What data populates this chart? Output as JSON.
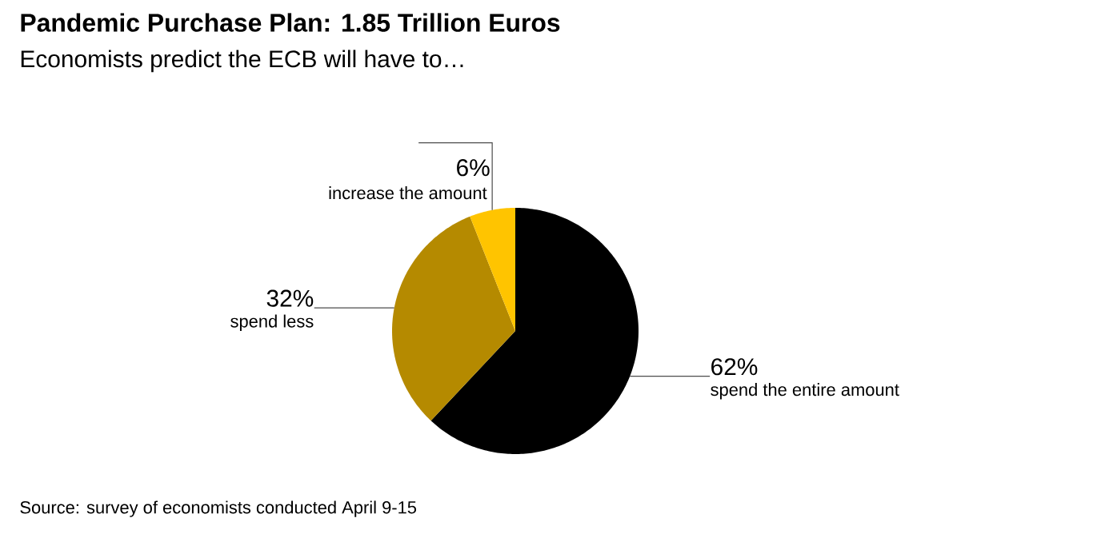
{
  "chart_data": {
    "type": "pie",
    "title": "Pandemic Purchase Plan: 1.85 Trillion Euros",
    "subtitle": "Economists predict the ECB will have to…",
    "categories": [
      "spend the entire amount",
      "spend less",
      "increase the amount"
    ],
    "values": [
      62,
      32,
      6
    ],
    "colors": [
      "#000000",
      "#b58a00",
      "#ffc400"
    ],
    "value_labels": [
      "62%",
      "32%",
      "6%"
    ],
    "annotations": [
      "Source: survey of economists conducted April 9-15"
    ]
  }
}
